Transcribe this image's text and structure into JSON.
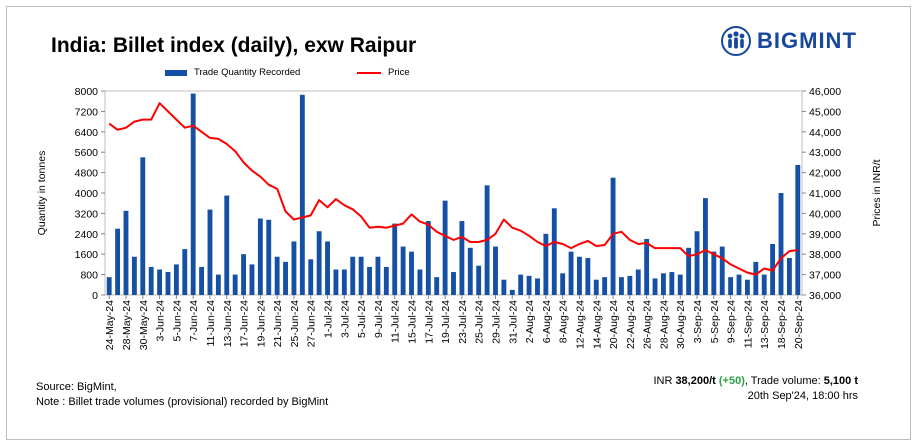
{
  "title": "India: Billet index (daily), exw Raipur",
  "brand": {
    "name": "BIGMINT",
    "logo_icon": "bigmint-people-icon",
    "color": "#17479e"
  },
  "legend": {
    "bar_label": "Trade Quantity Recorded",
    "line_label": "Price"
  },
  "colors": {
    "bar": "#1550a5",
    "line": "#ff0000"
  },
  "chart_data": {
    "type": "bar",
    "title": "India: Billet index (daily), exw Raipur",
    "ylabel": "Quantity in tonnes",
    "y2label": "Prices in INR/t",
    "ylim": [
      0,
      8000
    ],
    "y2lim": [
      36000,
      46000
    ],
    "yticks": [
      "0",
      "800",
      "1600",
      "2400",
      "3200",
      "4000",
      "4800",
      "5600",
      "6400",
      "7200",
      "8000"
    ],
    "y2ticks": [
      "36,000",
      "37,000",
      "38,000",
      "39,000",
      "40,000",
      "41,000",
      "42,000",
      "43,000",
      "44,000",
      "45,000",
      "46,000"
    ],
    "xtick_labels": [
      "24-May-24",
      "28-May-24",
      "30-May-24",
      "3-Jun-24",
      "5-Jun-24",
      "7-Jun-24",
      "11-Jun-24",
      "13-Jun-24",
      "17-Jun-24",
      "19-Jun-24",
      "21-Jun-24",
      "25-Jun-24",
      "27-Jun-24",
      "1-Jul-24",
      "3-Jul-24",
      "5-Jul-24",
      "9-Jul-24",
      "11-Jul-24",
      "15-Jul-24",
      "17-Jul-24",
      "19-Jul-24",
      "23-Jul-24",
      "25-Jul-24",
      "29-Jul-24",
      "31-Jul-24",
      "2-Aug-24",
      "6-Aug-24",
      "8-Aug-24",
      "12-Aug-24",
      "14-Aug-24",
      "20-Aug-24",
      "22-Aug-24",
      "26-Aug-24",
      "28-Aug-24",
      "30-Aug-24",
      "3-Sep-24",
      "5-Sep-24",
      "9-Sep-24",
      "11-Sep-24",
      "13-Sep-24",
      "18-Sep-24",
      "20-Sep-24"
    ],
    "series": [
      {
        "name": "Trade Quantity Recorded",
        "type": "bar",
        "axis": "left",
        "values": [
          700,
          2600,
          3300,
          1500,
          5400,
          1100,
          1000,
          900,
          1200,
          1800,
          7900,
          1100,
          3350,
          800,
          3900,
          800,
          1600,
          1200,
          3000,
          2950,
          1500,
          1300,
          2100,
          7850,
          1400,
          2500,
          2100,
          1000,
          1000,
          1500,
          1500,
          1100,
          1500,
          1100,
          2800,
          1900,
          1700,
          1000,
          2900,
          700,
          3700,
          900,
          2900,
          1850,
          1150,
          4300,
          1900,
          600,
          200,
          800,
          750,
          650,
          2400,
          3400,
          850,
          1700,
          1500,
          1450,
          600,
          700,
          4600,
          700,
          750,
          1000,
          2200,
          650,
          850,
          900,
          800,
          1850,
          2500,
          3800,
          1700,
          1900,
          700,
          800,
          600,
          1300,
          800,
          2000,
          4000,
          1450,
          5100
        ]
      },
      {
        "name": "Price",
        "type": "line",
        "axis": "right",
        "values": [
          44400,
          44100,
          44200,
          44500,
          44600,
          44600,
          45400,
          45000,
          44600,
          44200,
          44300,
          44000,
          43700,
          43650,
          43400,
          43050,
          42500,
          42100,
          41800,
          41400,
          41200,
          40100,
          39700,
          39800,
          39900,
          40650,
          40300,
          40700,
          40400,
          40200,
          39850,
          39300,
          39350,
          39300,
          39400,
          39500,
          39950,
          39600,
          39450,
          39100,
          38900,
          38700,
          38850,
          38600,
          38600,
          38700,
          39000,
          39700,
          39300,
          39150,
          38900,
          38600,
          38400,
          38600,
          38500,
          38300,
          38500,
          38650,
          38400,
          38450,
          39000,
          39100,
          38700,
          38500,
          38550,
          38300,
          38300,
          38300,
          38300,
          37900,
          38000,
          38200,
          38000,
          37800,
          37500,
          37300,
          37100,
          37000,
          37300,
          37200,
          37800,
          38150,
          38200
        ]
      }
    ]
  },
  "footer": {
    "source": "Source: BigMint,",
    "note": "Note : Billet trade volumes (provisional) recorded by BigMint",
    "price_prefix": "INR ",
    "price_value": "38,200/t",
    "price_change": "(+50)",
    "volume_prefix": ", Trade volume: ",
    "volume_value": "5,100 t",
    "timestamp": "20th Sep'24, 18:00 hrs"
  }
}
